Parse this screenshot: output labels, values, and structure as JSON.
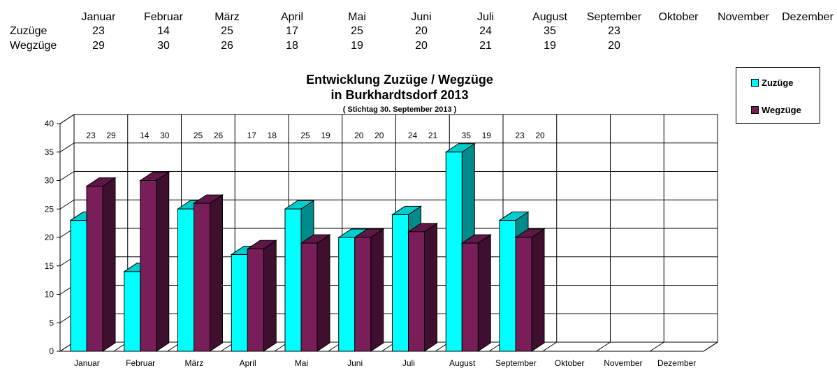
{
  "table": {
    "months": [
      "Januar",
      "Februar",
      "März",
      "April",
      "Mai",
      "Juni",
      "Juli",
      "August",
      "September",
      "Oktober",
      "November",
      "Dezember"
    ],
    "rows": [
      {
        "label": "Zuzüge",
        "values": [
          "23",
          "14",
          "25",
          "17",
          "25",
          "20",
          "24",
          "35",
          "23",
          "",
          "",
          ""
        ]
      },
      {
        "label": "Wegzüge",
        "values": [
          "29",
          "30",
          "26",
          "18",
          "19",
          "20",
          "21",
          "19",
          "20",
          "",
          "",
          ""
        ]
      }
    ]
  },
  "chart_data": {
    "type": "bar",
    "title": "Entwicklung Zuzüge / Wegzüge",
    "title_line2": "in Burkhardtsdorf 2013",
    "subtitle": "( Stichtag 30. September 2013 )",
    "categories": [
      "Januar",
      "Februar",
      "März",
      "April",
      "Mai",
      "Juni",
      "Juli",
      "August",
      "September",
      "Oktober",
      "November",
      "Dezember"
    ],
    "series": [
      {
        "name": "Zuzüge",
        "values": [
          23,
          14,
          25,
          17,
          25,
          20,
          24,
          35,
          23,
          null,
          null,
          null
        ],
        "color": "#00ffff",
        "side_color": "#008b8b",
        "top_color": "#00cccc"
      },
      {
        "name": "Wegzüge",
        "values": [
          29,
          30,
          26,
          18,
          19,
          20,
          21,
          19,
          20,
          null,
          null,
          null
        ],
        "color": "#7a1e5a",
        "side_color": "#3e0f2e",
        "top_color": "#5e1746"
      }
    ],
    "data_labels": [
      [
        "23",
        "29"
      ],
      [
        "14",
        "30"
      ],
      [
        "25",
        "26"
      ],
      [
        "17",
        "18"
      ],
      [
        "25",
        "19"
      ],
      [
        "20",
        "20"
      ],
      [
        "24",
        "21"
      ],
      [
        "35",
        "19"
      ],
      [
        "23",
        "20"
      ],
      [
        "",
        ""
      ],
      [
        "",
        ""
      ],
      [
        "",
        ""
      ]
    ],
    "yticks": [
      "0",
      "5",
      "10",
      "15",
      "20",
      "25",
      "30",
      "35",
      "40"
    ],
    "ylim": [
      0,
      40
    ],
    "xlabel": "",
    "ylabel": "",
    "grid": true,
    "legend_position": "top-right"
  },
  "legend": {
    "items": [
      {
        "label": "Zuzüge",
        "color": "#00ffff"
      },
      {
        "label": "Wegzüge",
        "color": "#7a1e5a"
      }
    ]
  }
}
